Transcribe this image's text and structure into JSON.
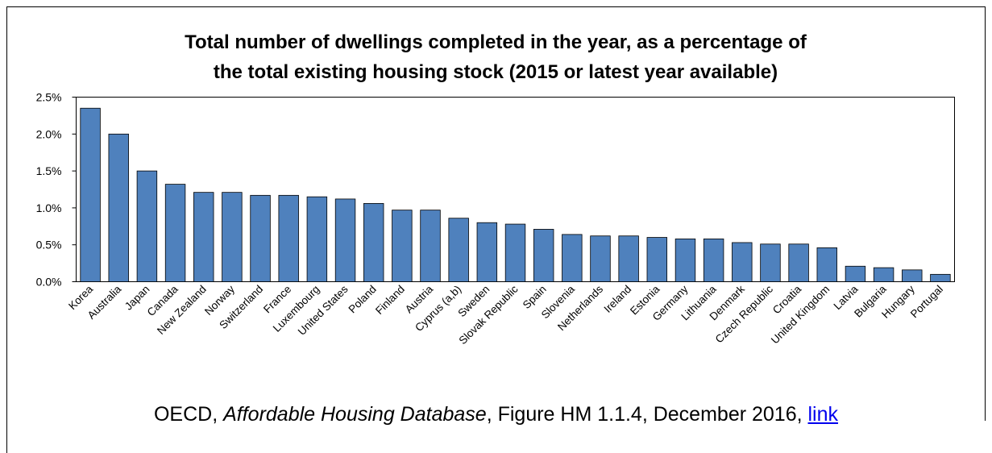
{
  "chart_data": {
    "type": "bar",
    "title": [
      "Total number of dwellings completed in the year, as a percentage of",
      "the total existing housing stock (2015 or latest year available)"
    ],
    "categories": [
      "Korea",
      "Australia",
      "Japan",
      "Canada",
      "New Zealand",
      "Norway",
      "Switzerland",
      "France",
      "Luxembourg",
      "United States",
      "Poland",
      "Finland",
      "Austria",
      "Cyprus (a,b)",
      "Sweden",
      "Slovak Republic",
      "Spain",
      "Slovenia",
      "Netherlands",
      "Ireland",
      "Estonia",
      "Germany",
      "Lithuania",
      "Denmark",
      "Czech Republic",
      "Croatia",
      "United Kingdom",
      "Latvia",
      "Bulgaria",
      "Hungary",
      "Portugal"
    ],
    "values": [
      2.35,
      2.0,
      1.5,
      1.32,
      1.21,
      1.21,
      1.17,
      1.17,
      1.15,
      1.12,
      1.06,
      0.97,
      0.97,
      0.86,
      0.8,
      0.78,
      0.71,
      0.64,
      0.62,
      0.62,
      0.6,
      0.58,
      0.58,
      0.53,
      0.51,
      0.51,
      0.46,
      0.21,
      0.19,
      0.16,
      0.1
    ],
    "color": "#4f81bd",
    "ylim": [
      0,
      2.5
    ],
    "yticks": [
      {
        "value": 0,
        "label": "0.0%"
      },
      {
        "value": 0.5,
        "label": "0.5%"
      },
      {
        "value": 1,
        "label": "1.0%"
      },
      {
        "value": 1.5,
        "label": "1.5%"
      },
      {
        "value": 2,
        "label": "2.0%"
      },
      {
        "value": 2.5,
        "label": "2.5%"
      }
    ],
    "grid": false
  },
  "source": {
    "prefix": "OECD, ",
    "title": "Affordable Housing Database",
    "suffix": ", Figure HM 1.1.4, December 2016, ",
    "link": "link"
  }
}
